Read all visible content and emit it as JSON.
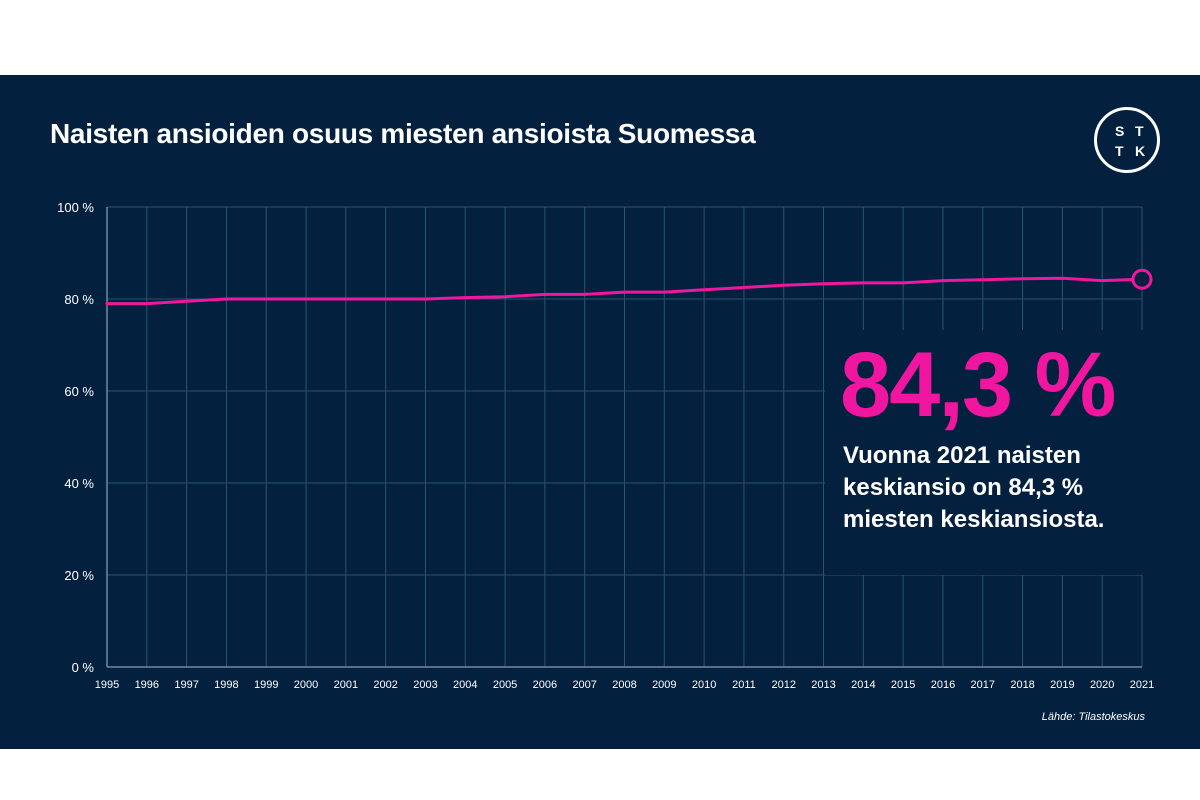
{
  "title": "Naisten ansioiden osuus miesten ansioista Suomessa",
  "logo": {
    "letters": [
      "S",
      "T",
      "T",
      "K"
    ]
  },
  "colors": {
    "background": "#03203f",
    "accent": "#f0169f",
    "grid": "#2a5567",
    "text": "#ffffff"
  },
  "callout": {
    "value": "84,3 %",
    "text": "Vuonna 2021 naisten keskiansio on 84,3 % miesten keskiansiosta."
  },
  "source": "Lähde: Tilastokeskus",
  "chart_data": {
    "type": "line",
    "title": "Naisten ansioiden osuus miesten ansioista Suomessa",
    "xlabel": "",
    "ylabel": "",
    "ylim": [
      0,
      100
    ],
    "yticks": [
      0,
      20,
      40,
      60,
      80,
      100
    ],
    "ytick_labels": [
      "0 %",
      "20 %",
      "40 %",
      "60 %",
      "80 %",
      "100 %"
    ],
    "grid": true,
    "x": [
      "1995",
      "1996",
      "1997",
      "1998",
      "1999",
      "2000",
      "2001",
      "2002",
      "2003",
      "2004",
      "2005",
      "2006",
      "2007",
      "2008",
      "2009",
      "2010",
      "2011",
      "2012",
      "2013",
      "2014",
      "2015",
      "2016",
      "2017",
      "2018",
      "2019",
      "2020",
      "2021"
    ],
    "series": [
      {
        "values": [
          79.0,
          79.0,
          79.5,
          80.0,
          80.0,
          80.0,
          80.0,
          80.0,
          80.0,
          80.3,
          80.5,
          81.0,
          81.0,
          81.5,
          81.5,
          82.0,
          82.5,
          83.0,
          83.3,
          83.5,
          83.5,
          84.0,
          84.2,
          84.4,
          84.5,
          84.0,
          84.3
        ],
        "color": "#f0169f",
        "end_marker": "open-circle"
      }
    ]
  }
}
